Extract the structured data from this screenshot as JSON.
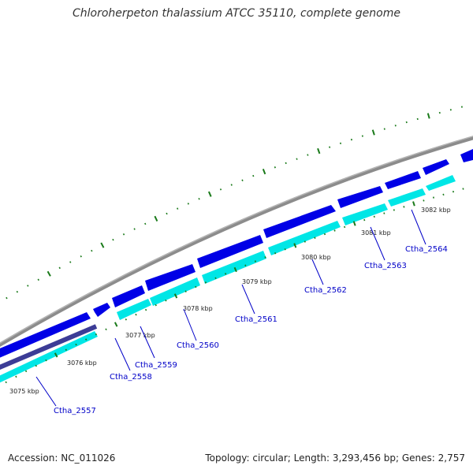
{
  "title": "Chloroherpeton thalassium ATCC 35110, complete genome",
  "footer": {
    "accession": "Accession: NC_011026",
    "summary": "Topology: circular; Length: 3,293,456 bp; Genes: 2,757"
  },
  "colors": {
    "backbone": "#8c8c8c",
    "forward_cds": "#0000e6",
    "reverse_cds": "#00e6e6",
    "gene_strip": "#3c3c96",
    "ticks": "#1a7a1a",
    "label": "#0000c8"
  },
  "ruler": {
    "unit": "kbp",
    "labels": [
      "3075 kbp",
      "3076 kbp",
      "3077 kbp",
      "3078 kbp",
      "3079 kbp",
      "3080 kbp",
      "3081 kbp",
      "3082 kbp"
    ]
  },
  "genes": [
    {
      "name": "Ctha_2557"
    },
    {
      "name": "Ctha_2558"
    },
    {
      "name": "Ctha_2559"
    },
    {
      "name": "Ctha_2560"
    },
    {
      "name": "Ctha_2561"
    },
    {
      "name": "Ctha_2562"
    },
    {
      "name": "Ctha_2563"
    },
    {
      "name": "Ctha_2564"
    }
  ]
}
